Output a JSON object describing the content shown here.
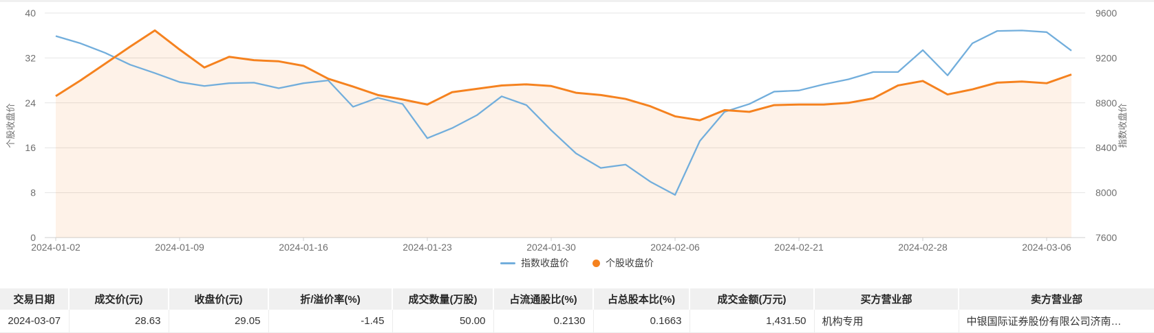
{
  "chart_data": {
    "type": "line",
    "grid": true,
    "legend_position": "bottom",
    "x": [
      "2024-01-02",
      "2024-01-03",
      "2024-01-04",
      "2024-01-05",
      "2024-01-08",
      "2024-01-09",
      "2024-01-10",
      "2024-01-11",
      "2024-01-12",
      "2024-01-15",
      "2024-01-16",
      "2024-01-17",
      "2024-01-18",
      "2024-01-19",
      "2024-01-22",
      "2024-01-23",
      "2024-01-24",
      "2024-01-25",
      "2024-01-26",
      "2024-01-29",
      "2024-01-30",
      "2024-01-31",
      "2024-02-01",
      "2024-02-02",
      "2024-02-05",
      "2024-02-06",
      "2024-02-07",
      "2024-02-08",
      "2024-02-19",
      "2024-02-20",
      "2024-02-21",
      "2024-02-22",
      "2024-02-23",
      "2024-02-26",
      "2024-02-27",
      "2024-02-28",
      "2024-02-29",
      "2024-03-01",
      "2024-03-04",
      "2024-03-05",
      "2024-03-06",
      "2024-03-07"
    ],
    "x_tick_labels": [
      "2024-01-02",
      "2024-01-09",
      "2024-01-16",
      "2024-01-23",
      "2024-01-30",
      "2024-02-06",
      "2024-02-21",
      "2024-02-28",
      "2024-03-06"
    ],
    "x_tick_every": 5,
    "series": [
      {
        "name": "指数收盘价",
        "axis": "right",
        "color": "#72AEDC",
        "marker": "line",
        "values": [
          9395,
          9330,
          9245,
          9140,
          9065,
          8985,
          8950,
          8975,
          8980,
          8930,
          8975,
          9000,
          8765,
          8845,
          8790,
          8485,
          8575,
          8690,
          8858,
          8780,
          8556,
          8350,
          8220,
          8250,
          8098,
          7980,
          8460,
          8720,
          8790,
          8900,
          8910,
          8965,
          9010,
          9075,
          9075,
          9270,
          9045,
          9330,
          9440,
          9445,
          9430,
          9265
        ]
      },
      {
        "name": "个股收盘价",
        "axis": "left",
        "color": "#F5821F",
        "marker": "circle",
        "area": true,
        "area_color": "rgba(245,130,31,0.10)",
        "values": [
          25.2,
          28.0,
          31.0,
          34.0,
          36.9,
          33.5,
          30.3,
          32.2,
          31.6,
          31.4,
          30.6,
          28.3,
          26.9,
          25.4,
          24.6,
          23.7,
          25.9,
          26.5,
          27.1,
          27.3,
          27.0,
          25.8,
          25.4,
          24.7,
          23.4,
          21.6,
          20.9,
          22.7,
          22.4,
          23.6,
          23.7,
          23.7,
          24.0,
          24.8,
          27.1,
          27.9,
          25.5,
          26.4,
          27.6,
          27.8,
          27.5,
          29.05
        ]
      }
    ],
    "left_axis": {
      "label": "个股收盘价",
      "range": [
        0,
        40
      ],
      "ticks": [
        0,
        8,
        16,
        24,
        32,
        40
      ]
    },
    "right_axis": {
      "label": "指数收盘价",
      "range": [
        7600,
        9600
      ],
      "ticks": [
        7600,
        8000,
        8400,
        8800,
        9200,
        9600
      ]
    }
  },
  "legend": {
    "items": [
      {
        "label": "指数收盘价",
        "color": "#72AEDC",
        "marker": "line"
      },
      {
        "label": "个股收盘价",
        "color": "#F5821F",
        "marker": "circle"
      }
    ]
  },
  "table": {
    "headers": [
      "交易日期",
      "成交价(元)",
      "收盘价(元)",
      "折/溢价率(%)",
      "成交数量(万股)",
      "占流通股比(%)",
      "占总股本比(%)",
      "成交金额(万元)",
      "买方营业部",
      "卖方营业部"
    ],
    "rows": [
      [
        "2024-03-07",
        "28.63",
        "29.05",
        "-1.45",
        "50.00",
        "0.2130",
        "0.1663",
        "1,431.50",
        "机构专用",
        "中银国际证券股份有限公司济南…"
      ]
    ]
  },
  "colors": {
    "grid": "#e4e4e4",
    "axis_line": "#cfcfcf",
    "axis_text": "#6e6e6e",
    "header_bg": "#f0f0f0"
  }
}
